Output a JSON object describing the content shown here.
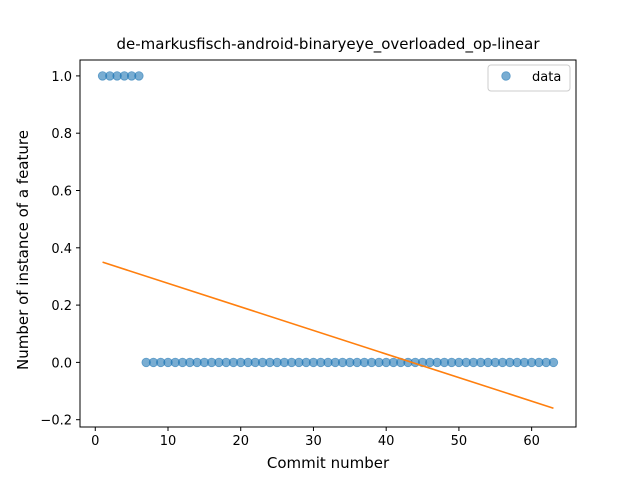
{
  "chart_data": {
    "type": "scatter",
    "title": "de-markusfisch-android-binaryeye_overloaded_op-linear",
    "xlabel": "Commit number",
    "ylabel": "Number of instance of a feature",
    "xlim": [
      -2.1,
      66.1
    ],
    "ylim": [
      -0.2255,
      1.0555
    ],
    "xticks": [
      0,
      10,
      20,
      30,
      40,
      50,
      60
    ],
    "yticks": [
      -0.2,
      0.0,
      0.2,
      0.4,
      0.6,
      0.8,
      1.0
    ],
    "xtick_labels": [
      "0",
      "10",
      "20",
      "30",
      "40",
      "50",
      "60"
    ],
    "ytick_labels": [
      "−0.2",
      "0.0",
      "0.2",
      "0.4",
      "0.6",
      "0.8",
      "1.0"
    ],
    "series": [
      {
        "name": "data",
        "kind": "scatter",
        "color": "#1f77b4",
        "x": [
          1,
          2,
          3,
          4,
          5,
          6,
          7,
          8,
          9,
          10,
          11,
          12,
          13,
          14,
          15,
          16,
          17,
          18,
          19,
          20,
          21,
          22,
          23,
          24,
          25,
          26,
          27,
          28,
          29,
          30,
          31,
          32,
          33,
          34,
          35,
          36,
          37,
          38,
          39,
          40,
          41,
          42,
          43,
          44,
          45,
          46,
          47,
          48,
          49,
          50,
          51,
          52,
          53,
          54,
          55,
          56,
          57,
          58,
          59,
          60,
          61,
          62,
          63
        ],
        "y": [
          1,
          1,
          1,
          1,
          1,
          1,
          0,
          0,
          0,
          0,
          0,
          0,
          0,
          0,
          0,
          0,
          0,
          0,
          0,
          0,
          0,
          0,
          0,
          0,
          0,
          0,
          0,
          0,
          0,
          0,
          0,
          0,
          0,
          0,
          0,
          0,
          0,
          0,
          0,
          0,
          0,
          0,
          0,
          0,
          0,
          0,
          0,
          0,
          0,
          0,
          0,
          0,
          0,
          0,
          0,
          0,
          0,
          0,
          0,
          0,
          0,
          0,
          0
        ]
      },
      {
        "kind": "line",
        "color": "#ff7f0e",
        "x": [
          1,
          63
        ],
        "y": [
          0.35,
          -0.16
        ]
      }
    ],
    "legend": {
      "placement": "top-right",
      "entries": [
        "data"
      ]
    },
    "grid": false
  }
}
